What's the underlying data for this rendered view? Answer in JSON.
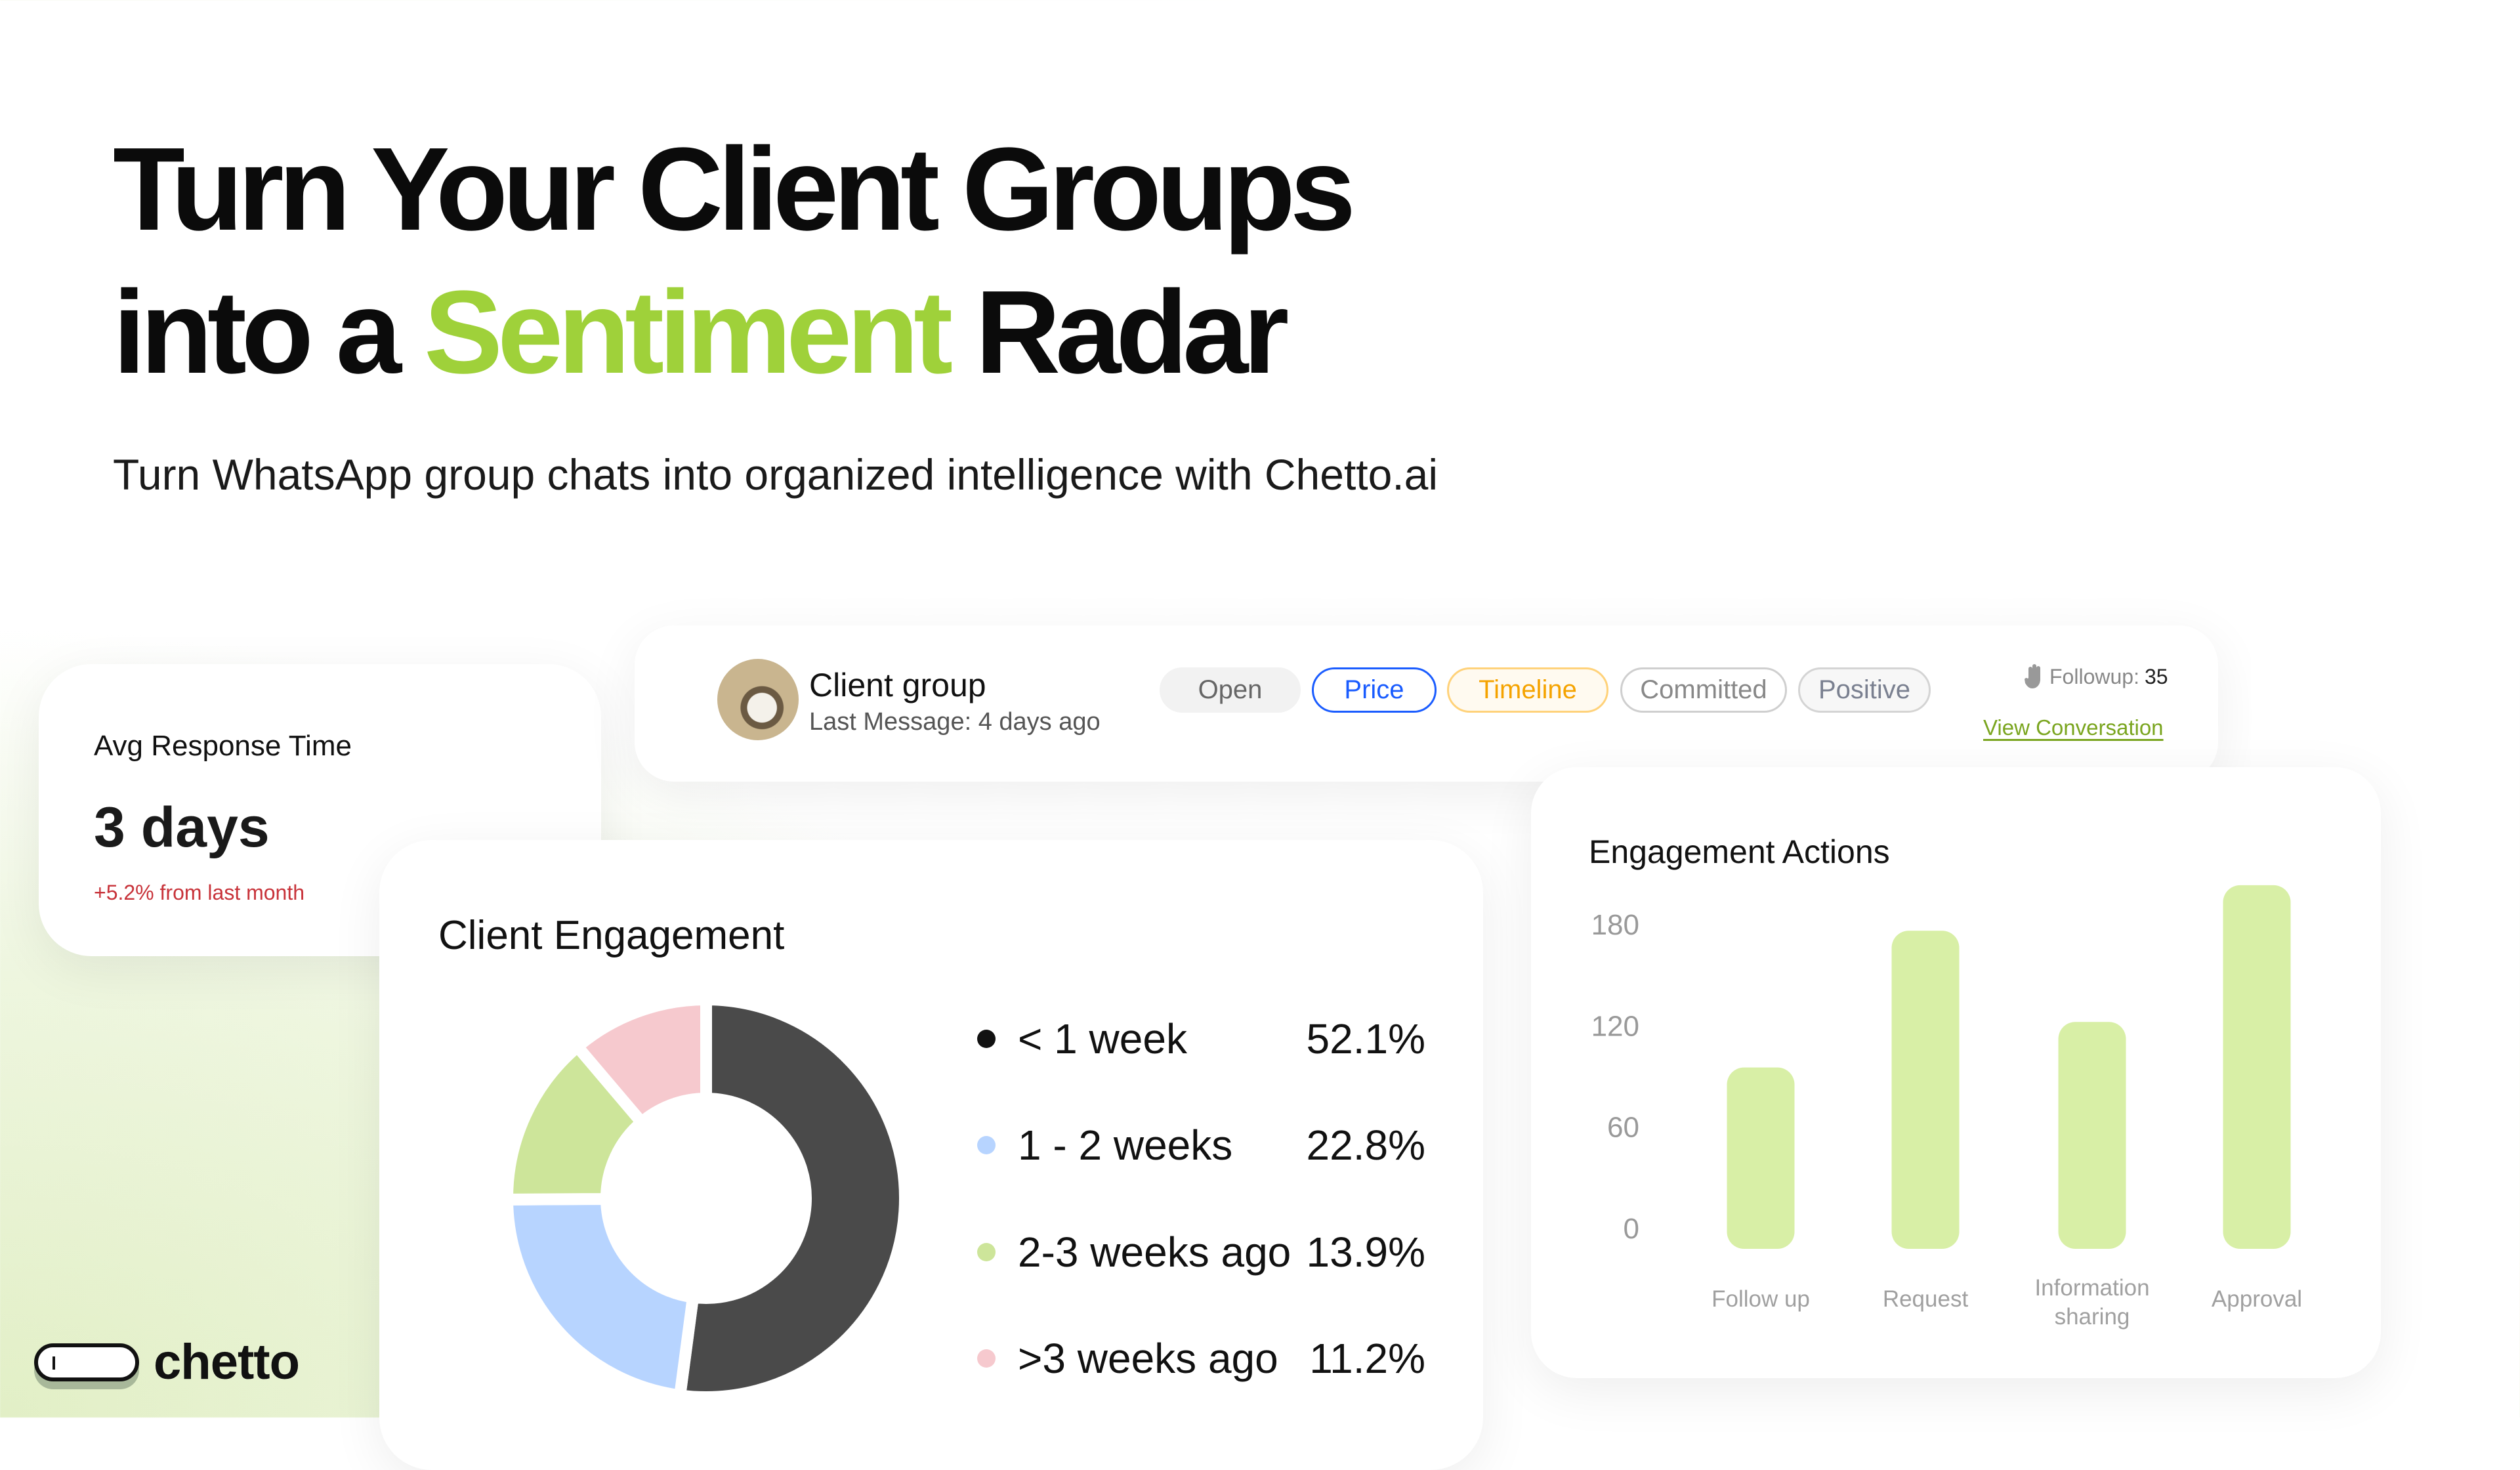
{
  "hero": {
    "line1": "Turn Your Client Groups",
    "line2_prefix": "into a",
    "line2_highlight": "Sentiment",
    "line2_suffix": "Radar",
    "subtitle": "Turn WhatsApp group chats into organized intelligence with Chetto.ai",
    "accent": "#9fd13a"
  },
  "avg_card": {
    "title": "Avg Response Time",
    "value": "3 days",
    "delta": "+5.2% from last month",
    "delta_color": "#c8333a"
  },
  "group_card": {
    "name": "Client group",
    "last_message": "Last Message: 4 days ago",
    "tags": [
      {
        "label": "Open",
        "color": "#666",
        "border": "#f2f2f2",
        "bg": "#f2f2f2"
      },
      {
        "label": "Price",
        "color": "#1a5cff",
        "border": "#1a5cff",
        "bg": "#fff"
      },
      {
        "label": "Timeline",
        "color": "#f5a300",
        "border": "#ffd27a",
        "bg": "#fffaf0"
      },
      {
        "label": "Committed",
        "color": "#888",
        "border": "#cfcfcf",
        "bg": "#fff"
      },
      {
        "label": "Positive",
        "color": "#7a8090",
        "border": "#d4d4d4",
        "bg": "#f7f7f7"
      }
    ],
    "followup_label": "Followup:",
    "followup_count": "35",
    "followup_icon": "hand-icon",
    "view_link": "View Conversation"
  },
  "engagement": {
    "title": "Client Engagement"
  },
  "actions": {
    "title": "Engagement Actions"
  },
  "logo": {
    "text": "chetto"
  },
  "chart_data": [
    {
      "type": "pie",
      "title": "Client Engagement",
      "donut": true,
      "categories": [
        "< 1 week",
        "1 - 2 weeks",
        "2-3 weeks ago",
        ">3 weeks ago"
      ],
      "values": [
        52.1,
        22.8,
        13.9,
        11.2
      ],
      "labels": [
        "52.1%",
        "22.8%",
        "13.9%",
        "11.2%"
      ],
      "colors": [
        "#4a4a4a",
        "#b7d4ff",
        "#cde59a",
        "#f6c9ce"
      ],
      "legend": "right"
    },
    {
      "type": "bar",
      "title": "Engagement Actions",
      "categories": [
        "Follow up",
        "Request",
        "Information sharing",
        "Approval"
      ],
      "category_lines": [
        [
          "Follow up"
        ],
        [
          "Request"
        ],
        [
          "Information",
          "sharing"
        ],
        [
          "Approval"
        ]
      ],
      "values": [
        95,
        176,
        122,
        203
      ],
      "yticks": [
        "0",
        "60",
        "120",
        "180"
      ],
      "ylim": [
        0,
        210
      ],
      "color": "#d8efa6",
      "grid": false
    }
  ]
}
